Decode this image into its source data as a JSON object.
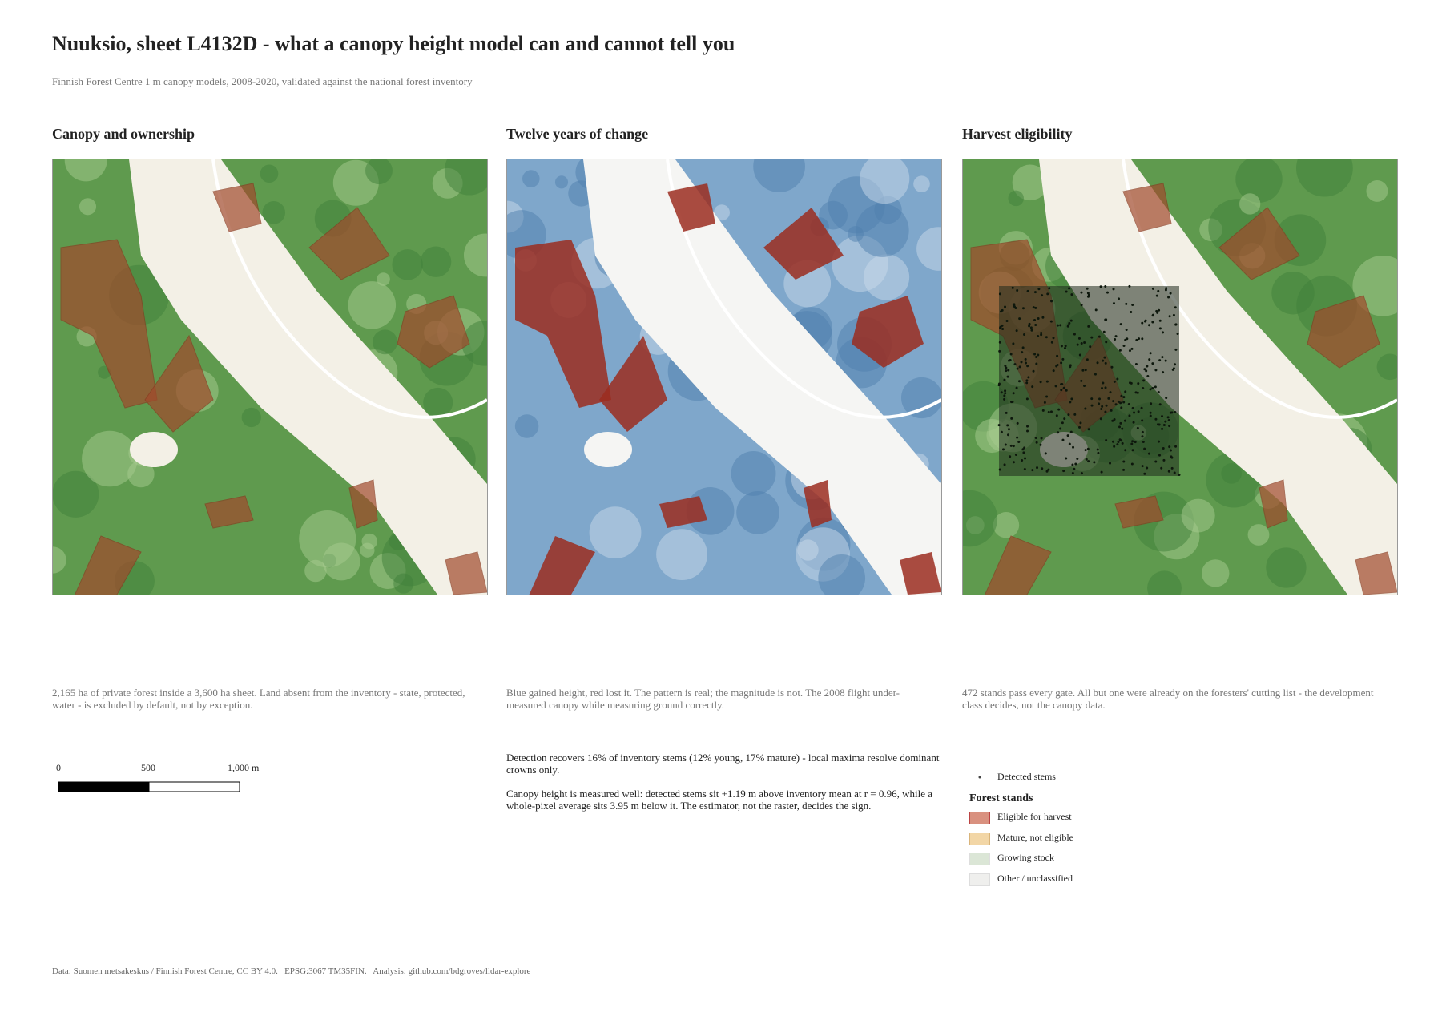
{
  "header": {
    "title": "Nuuksio, sheet L4132D - what a canopy height model can and cannot tell you",
    "subtitle": "Finnish Forest Centre 1 m canopy models, 2008-2020, validated against the national forest inventory"
  },
  "panels": [
    {
      "title": "Canopy and ownership",
      "caption": "2,165 ha of private forest inside a 3,600 ha sheet. Land absent from the inventory - state, protected, water - is excluded by default, not by exception."
    },
    {
      "title": "Twelve years of change",
      "caption": "Blue gained height, red lost it. The pattern is real; the magnitude is not. The 2008 flight under-measured canopy while measuring ground correctly."
    },
    {
      "title": "Harvest eligibility",
      "caption": "472 stands pass every gate. All but one were already on the foresters' cutting list - the development class decides, not the canopy data."
    }
  ],
  "scale_bar": {
    "labels": [
      "0",
      "500",
      "1,000 m"
    ]
  },
  "notes": [
    "Detection recovers 16% of inventory stems (12% young, 17% mature) - local maxima resolve dominant crowns only.",
    "Canopy height is measured well: detected stems sit +1.19 m above inventory mean at r = 0.96, while a whole-pixel average sits 3.95 m below it. The estimator, not the raster, decides the sign."
  ],
  "legend": {
    "points": "Detected stems",
    "title": "Forest stands",
    "items": [
      {
        "label": "Eligible for harvest",
        "color": "#d9917f"
      },
      {
        "label": "Mature, not eligible",
        "color": "#f2d6a6"
      },
      {
        "label": "Growing stock",
        "color": "#dbe6d6"
      },
      {
        "label": "Other / unclassified",
        "color": "#efefed"
      }
    ]
  },
  "footer": "Data: Suomen metsakeskus / Finnish Forest Centre, CC BY 4.0.   EPSG:3067 TM35FIN.   Analysis: github.com/bdgroves/lidar-explore"
}
